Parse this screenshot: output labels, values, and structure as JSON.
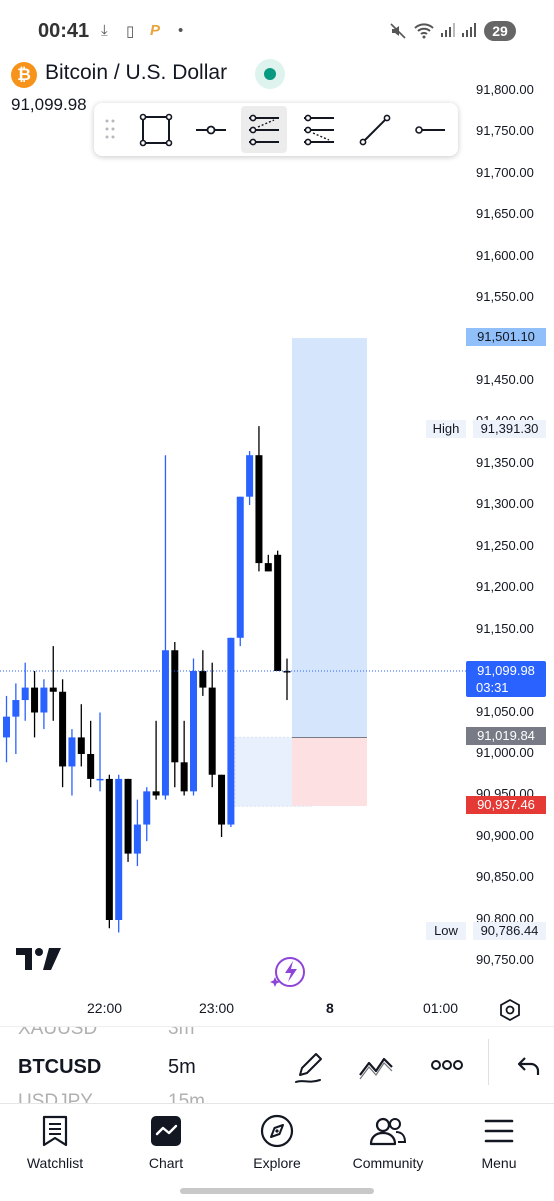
{
  "status_bar": {
    "time": "00:41",
    "battery": "29",
    "icons": [
      "download-icon",
      "clipboard-icon",
      "p-app-icon",
      "dot-icon",
      "mute-icon",
      "wifi-icon",
      "signal-icon",
      "signal-icon"
    ]
  },
  "header": {
    "symbol_name": "Bitcoin / U.S. Dollar",
    "last_price": "91,099.98",
    "market_status_color": "#089981"
  },
  "toolbar": {
    "tools": [
      "rectangle-tool-icon",
      "horizontal-ray-tool-icon",
      "long-position-tool-icon",
      "short-position-tool-icon",
      "trend-line-tool-icon",
      "horizontal-line-tool-icon"
    ],
    "active_tool": "long-position-tool-icon"
  },
  "price_axis": {
    "labels": [
      "91,800.00",
      "91,750.00",
      "91,700.00",
      "91,650.00",
      "91,600.00",
      "91,550.00",
      "91,450.00",
      "91,350.00",
      "91,300.00",
      "91,250.00",
      "91,200.00",
      "91,150.00",
      "91,050.00",
      "91,000.00",
      "90,900.00",
      "90,850.00",
      "90,750.00"
    ],
    "partial_labels": [
      "91,400.00",
      "90,950.00",
      "90,800.00"
    ],
    "target_price": "91,501.10",
    "high_label": "High",
    "high_value": "91,391.30",
    "current_price": "91,099.98",
    "countdown": "03:31",
    "entry_price": "91,019.84",
    "stop_price": "90,937.46",
    "low_label": "Low",
    "low_value": "90,786.44"
  },
  "time_axis": {
    "labels": [
      "22:00",
      "23:00",
      "8",
      "01:00"
    ]
  },
  "colors": {
    "bull": "#2962ff",
    "bear": "#000000",
    "target_zone": "#d5e5fb",
    "stop_zone": "#fde0e2",
    "current_price_tag": "#2962ff",
    "stop_tag": "#e53935",
    "entry_tag": "#787b86",
    "target_tag": "#90bff9"
  },
  "chart_data": {
    "type": "candlestick",
    "ylim": [
      90725,
      91825
    ],
    "candles": [
      {
        "o": 91020,
        "h": 91070,
        "l": 90990,
        "c": 91045
      },
      {
        "o": 91045,
        "h": 91085,
        "l": 91000,
        "c": 91065
      },
      {
        "o": 91065,
        "h": 91110,
        "l": 91040,
        "c": 91080
      },
      {
        "o": 91080,
        "h": 91100,
        "l": 91020,
        "c": 91050
      },
      {
        "o": 91050,
        "h": 91090,
        "l": 91030,
        "c": 91080
      },
      {
        "o": 91080,
        "h": 91130,
        "l": 91040,
        "c": 91075
      },
      {
        "o": 91075,
        "h": 91090,
        "l": 90960,
        "c": 90985
      },
      {
        "o": 90985,
        "h": 91030,
        "l": 90950,
        "c": 91020
      },
      {
        "o": 91020,
        "h": 91060,
        "l": 90985,
        "c": 91000
      },
      {
        "o": 91000,
        "h": 91040,
        "l": 90960,
        "c": 90970
      },
      {
        "o": 90970,
        "h": 91050,
        "l": 90955,
        "c": 90970
      },
      {
        "o": 90970,
        "h": 90975,
        "l": 90790,
        "c": 90800
      },
      {
        "o": 90800,
        "h": 90975,
        "l": 90785,
        "c": 90970
      },
      {
        "o": 90970,
        "h": 90970,
        "l": 90870,
        "c": 90880
      },
      {
        "o": 90880,
        "h": 90945,
        "l": 90865,
        "c": 90915
      },
      {
        "o": 90915,
        "h": 90960,
        "l": 90895,
        "c": 90955
      },
      {
        "o": 90955,
        "h": 91040,
        "l": 90945,
        "c": 90950
      },
      {
        "o": 90950,
        "h": 91360,
        "l": 90945,
        "c": 91125
      },
      {
        "o": 91125,
        "h": 91135,
        "l": 90960,
        "c": 90990
      },
      {
        "o": 90990,
        "h": 91040,
        "l": 90950,
        "c": 90955
      },
      {
        "o": 90955,
        "h": 91115,
        "l": 90950,
        "c": 91100
      },
      {
        "o": 91100,
        "h": 91125,
        "l": 91070,
        "c": 91080
      },
      {
        "o": 91080,
        "h": 91110,
        "l": 90960,
        "c": 90975
      },
      {
        "o": 90975,
        "h": 90975,
        "l": 90900,
        "c": 90915
      },
      {
        "o": 90915,
        "h": 91140,
        "l": 90912,
        "c": 91140
      },
      {
        "o": 91140,
        "h": 91310,
        "l": 91130,
        "c": 91310
      },
      {
        "o": 91310,
        "h": 91365,
        "l": 91300,
        "c": 91360
      },
      {
        "o": 91360,
        "h": 91395,
        "l": 91220,
        "c": 91230
      },
      {
        "o": 91230,
        "h": 91240,
        "l": 91220,
        "c": 91220
      },
      {
        "o": 91240,
        "h": 91245,
        "l": 91110,
        "c": 91100
      },
      {
        "o": 91100,
        "h": 91115,
        "l": 91065,
        "c": 91099.98
      }
    ],
    "long_position": {
      "entry": 91019.84,
      "target": 91501.1,
      "stop": 90937.46
    },
    "ghost_position": {
      "entry": 91020,
      "stop": 90937
    }
  },
  "symbol_strip": {
    "prev_symbol": "XAUUSD",
    "prev_interval": "3m",
    "symbol": "BTCUSD",
    "interval": "5m",
    "next_symbol": "USDJPY",
    "next_interval": "15m"
  },
  "bottom_nav": {
    "items": [
      {
        "label": "Watchlist",
        "icon": "watchlist-icon"
      },
      {
        "label": "Chart",
        "icon": "chart-icon"
      },
      {
        "label": "Explore",
        "icon": "compass-icon"
      },
      {
        "label": "Community",
        "icon": "community-icon"
      },
      {
        "label": "Menu",
        "icon": "menu-icon"
      }
    ]
  }
}
